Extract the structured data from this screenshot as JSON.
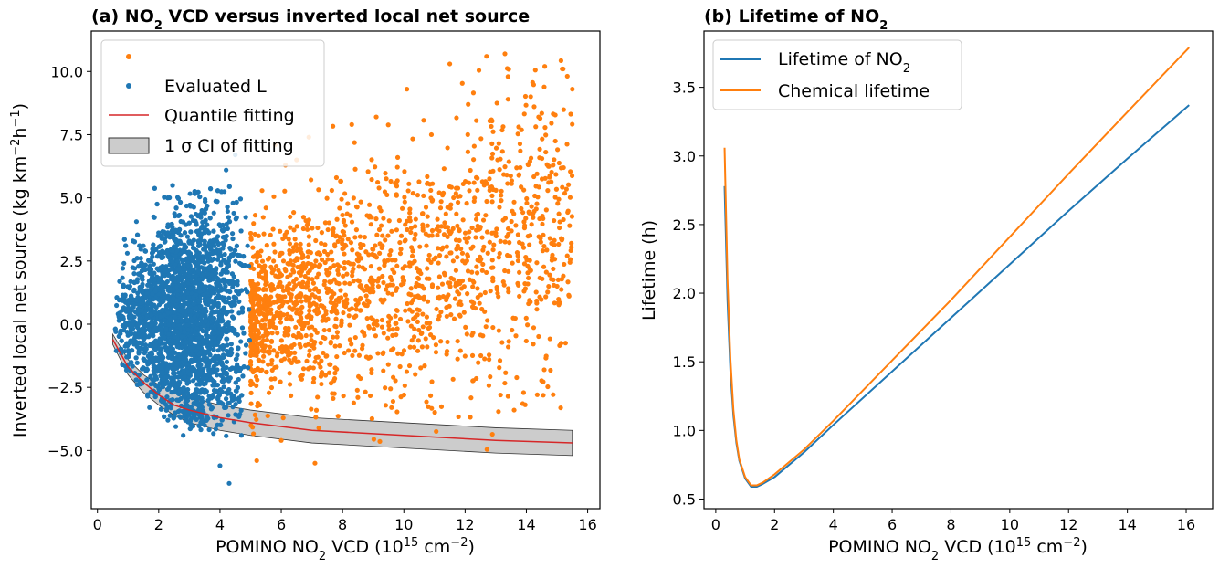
{
  "chart_data": [
    {
      "type": "scatter",
      "title": "(a) NO₂ VCD versus inverted local net source",
      "xlabel": "POMINO NO₂ VCD (10¹⁵ cm⁻²)",
      "ylabel": "Inverted local net source (kg km⁻²h⁻¹)",
      "xlim": [
        -0.2,
        16.4
      ],
      "ylim": [
        -7.3,
        11.6
      ],
      "x_ticks": [
        "0",
        "2",
        "4",
        "6",
        "8",
        "10",
        "12",
        "14",
        "16"
      ],
      "y_ticks": [
        "−5.0",
        "−2.5",
        "0.0",
        "2.5",
        "5.0",
        "7.5",
        "10.0"
      ],
      "grid": false,
      "legend_position": "top-left",
      "colors": {
        "blue": "#1f77b4",
        "orange": "#ff7f0e",
        "red": "#d62728",
        "band_fill": "#cccccc"
      },
      "series": [
        {
          "name": "",
          "kind": "scatter",
          "color": "#ff7f0e",
          "description_range": {
            "x": [
              5.0,
              15.5
            ],
            "y": [
              -5.6,
              10.7
            ]
          },
          "points": [
            [
              5.2,
              -5.4
            ],
            [
              5.3,
              -3.2
            ],
            [
              5.5,
              4.6
            ],
            [
              5.8,
              7.1
            ],
            [
              6.0,
              -4.6
            ],
            [
              6.2,
              1.5
            ],
            [
              6.5,
              6.5
            ],
            [
              6.6,
              -0.8
            ],
            [
              6.9,
              7.4
            ],
            [
              7.1,
              -5.5
            ],
            [
              7.3,
              3.2
            ],
            [
              7.6,
              -1.6
            ],
            [
              7.8,
              5.8
            ],
            [
              8.1,
              0.7
            ],
            [
              8.3,
              7.9
            ],
            [
              8.5,
              -2.9
            ],
            [
              8.8,
              4.3
            ],
            [
              9.1,
              8.2
            ],
            [
              9.3,
              1.9
            ],
            [
              9.6,
              -3.3
            ],
            [
              9.8,
              6.6
            ],
            [
              10.1,
              9.3
            ],
            [
              10.3,
              2.9
            ],
            [
              10.6,
              -0.9
            ],
            [
              10.9,
              7.5
            ],
            [
              11.2,
              4.6
            ],
            [
              11.5,
              10.3
            ],
            [
              11.8,
              1.2
            ],
            [
              12.1,
              8.7
            ],
            [
              12.4,
              5.3
            ],
            [
              12.7,
              10.6
            ],
            [
              13.0,
              3.6
            ],
            [
              13.3,
              10.7
            ],
            [
              13.4,
              8.9
            ],
            [
              13.6,
              -3.4
            ],
            [
              13.8,
              6.2
            ],
            [
              14.1,
              4.4
            ],
            [
              14.4,
              8.2
            ],
            [
              14.6,
              10.2
            ],
            [
              14.9,
              4.1
            ],
            [
              15.2,
              10.1
            ],
            [
              15.5,
              9.3
            ]
          ]
        },
        {
          "name": "Evaluated L",
          "kind": "scatter",
          "color": "#1f77b4",
          "description_range": {
            "x": [
              0.5,
              5.0
            ],
            "y": [
              -6.3,
              6.7
            ]
          },
          "points": [
            [
              0.6,
              -0.3
            ],
            [
              0.8,
              1.0
            ],
            [
              1.0,
              -1.6
            ],
            [
              1.2,
              2.0
            ],
            [
              1.3,
              -2.4
            ],
            [
              1.5,
              3.1
            ],
            [
              1.7,
              -3.3
            ],
            [
              1.9,
              1.3
            ],
            [
              2.1,
              3.5
            ],
            [
              2.3,
              -3.8
            ],
            [
              2.6,
              2.9
            ],
            [
              2.8,
              -4.4
            ],
            [
              3.0,
              1.9
            ],
            [
              3.3,
              3.3
            ],
            [
              3.5,
              -4.0
            ],
            [
              3.8,
              4.4
            ],
            [
              4.0,
              -5.6
            ],
            [
              4.2,
              6.1
            ],
            [
              4.3,
              -6.3
            ],
            [
              4.5,
              6.7
            ],
            [
              4.7,
              -4.4
            ],
            [
              4.9,
              3.1
            ]
          ]
        },
        {
          "name": "Quantile fitting",
          "kind": "line",
          "color": "#d62728",
          "x": [
            0.5,
            1.0,
            1.5,
            2.0,
            2.5,
            3.0,
            4.0,
            5.0,
            7.0,
            10.0,
            13.0,
            15.5
          ],
          "y": [
            -0.6,
            -1.7,
            -2.3,
            -2.8,
            -3.2,
            -3.4,
            -3.7,
            -3.9,
            -4.2,
            -4.4,
            -4.6,
            -4.7
          ]
        },
        {
          "name": "1 σ CI of fitting",
          "kind": "band",
          "color": "#cccccc",
          "x": [
            0.5,
            1.0,
            1.5,
            2.0,
            2.5,
            3.0,
            4.0,
            5.0,
            7.0,
            10.0,
            13.0,
            15.5
          ],
          "lower": [
            -0.8,
            -2.0,
            -2.7,
            -3.2,
            -3.6,
            -3.9,
            -4.2,
            -4.4,
            -4.7,
            -4.9,
            -5.1,
            -5.2
          ],
          "upper": [
            -0.4,
            -1.4,
            -2.0,
            -2.4,
            -2.7,
            -2.9,
            -3.2,
            -3.4,
            -3.7,
            -3.9,
            -4.1,
            -4.2
          ]
        }
      ],
      "legend": [
        "",
        "Evaluated L",
        "Quantile fitting",
        "1 σ CI of fitting"
      ]
    },
    {
      "type": "line",
      "title": "(b) Lifetime of NO₂",
      "xlabel": "POMINO NO₂ VCD (10¹⁵ cm⁻²)",
      "ylabel": "Lifetime (h)",
      "xlim": [
        -0.4,
        16.9
      ],
      "ylim": [
        0.43,
        3.91
      ],
      "x_ticks": [
        "0",
        "2",
        "4",
        "6",
        "8",
        "10",
        "12",
        "14",
        "16"
      ],
      "y_ticks": [
        "0.5",
        "1.0",
        "1.5",
        "2.0",
        "2.5",
        "3.0",
        "3.5"
      ],
      "grid": false,
      "legend_position": "top-left",
      "series": [
        {
          "name": "Lifetime of NO₂",
          "color": "#1f77b4",
          "x": [
            0.3,
            0.4,
            0.5,
            0.6,
            0.7,
            0.8,
            1.0,
            1.2,
            1.4,
            1.6,
            2.0,
            3.0,
            4.0,
            6.0,
            8.0,
            10.0,
            12.0,
            14.0,
            16.1
          ],
          "y": [
            2.78,
            1.95,
            1.43,
            1.11,
            0.91,
            0.78,
            0.65,
            0.59,
            0.59,
            0.61,
            0.66,
            0.84,
            1.04,
            1.43,
            1.82,
            2.21,
            2.6,
            2.98,
            3.37
          ]
        },
        {
          "name": "Chemical lifetime",
          "color": "#ff7f0e",
          "x": [
            0.3,
            0.4,
            0.5,
            0.6,
            0.7,
            0.8,
            1.0,
            1.2,
            1.4,
            1.6,
            2.0,
            3.0,
            4.0,
            6.0,
            8.0,
            10.0,
            12.0,
            14.0,
            16.1
          ],
          "y": [
            3.06,
            2.1,
            1.52,
            1.15,
            0.93,
            0.79,
            0.66,
            0.6,
            0.6,
            0.62,
            0.68,
            0.86,
            1.07,
            1.51,
            1.95,
            2.41,
            2.87,
            3.32,
            3.79
          ]
        }
      ],
      "legend": [
        "Lifetime of NO₂",
        "Chemical lifetime"
      ]
    }
  ]
}
